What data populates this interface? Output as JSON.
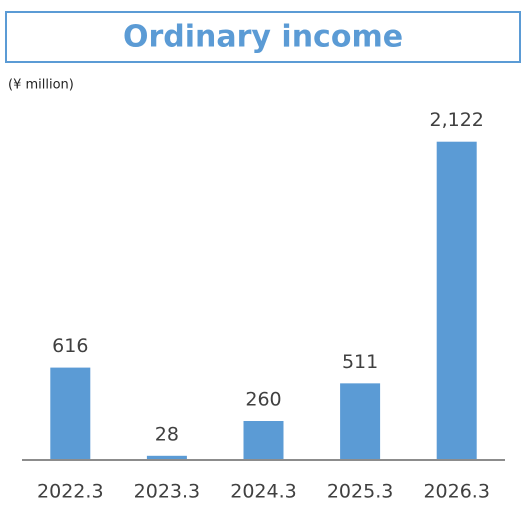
{
  "chart_data": {
    "type": "bar",
    "title": "Ordinary income",
    "subtitle": "(¥ million)",
    "categories": [
      "2022.3",
      "2023.3",
      "2024.3",
      "2025.3",
      "2026.3"
    ],
    "values": [
      616,
      28,
      260,
      511,
      2122
    ],
    "value_labels": [
      "616",
      "28",
      "260",
      "511",
      "2,122"
    ],
    "color": "#5b9bd5",
    "ylim": [
      0,
      2200
    ],
    "grid": false
  }
}
